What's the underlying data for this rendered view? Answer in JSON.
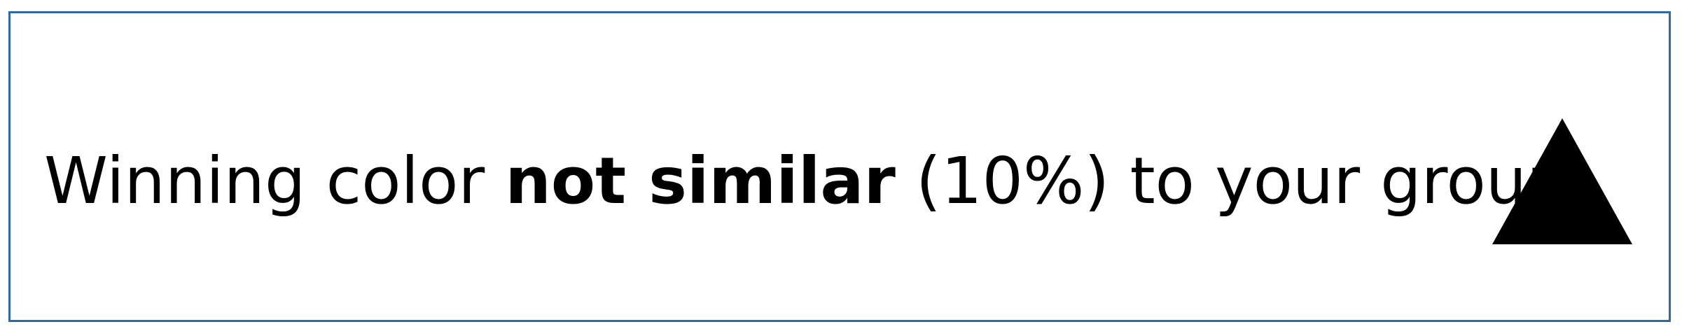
{
  "message": {
    "prefix": "Winning color ",
    "emphasis": "not similar",
    "suffix": " (10%) to your group"
  },
  "indicator": {
    "icon": "up-triangle-icon",
    "color": "#000000"
  },
  "colors": {
    "border": "#2e6aa8",
    "text": "#000000",
    "background": "#ffffff"
  }
}
